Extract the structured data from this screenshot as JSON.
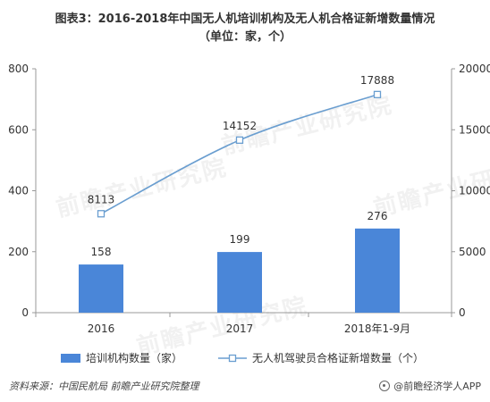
{
  "title": {
    "line1": "图表3：2016-2018年中国无人机培训机构及无人机合格证新增数量情况",
    "line2": "（单位：家，个）"
  },
  "footer": {
    "source": "资料来源：中国民航局  前瞻产业研究院整理",
    "brand": "@前瞻经济学人APP"
  },
  "watermark": "前瞻产业研究院",
  "chart_data": {
    "type": "bar+line",
    "categories": [
      "2016",
      "2017",
      "2018年1-9月"
    ],
    "series": [
      {
        "name": "培训机构数量（家）",
        "kind": "bar",
        "axis": "left",
        "color": "#4a86d8",
        "values": [
          158,
          199,
          276
        ]
      },
      {
        "name": "无人机驾驶员合格证新增数量（个）",
        "kind": "line",
        "axis": "right",
        "color": "#6a9ed0",
        "values": [
          8113,
          14152,
          17888
        ]
      }
    ],
    "left_axis": {
      "min": 0,
      "max": 800,
      "ticks": [
        0,
        200,
        400,
        600,
        800
      ]
    },
    "right_axis": {
      "min": 0,
      "max": 20000,
      "ticks": [
        0,
        5000,
        10000,
        15000,
        20000
      ]
    },
    "grid": false,
    "legend": "bottom"
  }
}
